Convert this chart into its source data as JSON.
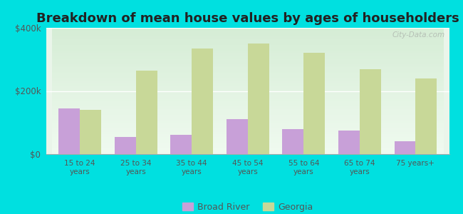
{
  "title": "Breakdown of mean house values by ages of householders",
  "categories": [
    "15 to 24\nyears",
    "25 to 34\nyears",
    "35 to 44\nyears",
    "45 to 54\nyears",
    "55 to 64\nyears",
    "65 to 74\nyears",
    "75 years+"
  ],
  "broad_river": [
    145000,
    55000,
    60000,
    110000,
    80000,
    75000,
    40000
  ],
  "georgia": [
    140000,
    265000,
    335000,
    350000,
    320000,
    270000,
    240000
  ],
  "broad_river_color": "#c8a0d8",
  "georgia_color": "#c8d898",
  "background_color": "#00e0e0",
  "ylim": [
    0,
    400000
  ],
  "yticks": [
    0,
    200000,
    400000
  ],
  "ytick_labels": [
    "$0",
    "$200k",
    "$400k"
  ],
  "title_fontsize": 13,
  "legend_labels": [
    "Broad River",
    "Georgia"
  ],
  "bar_width": 0.38,
  "watermark": "City-Data.com"
}
